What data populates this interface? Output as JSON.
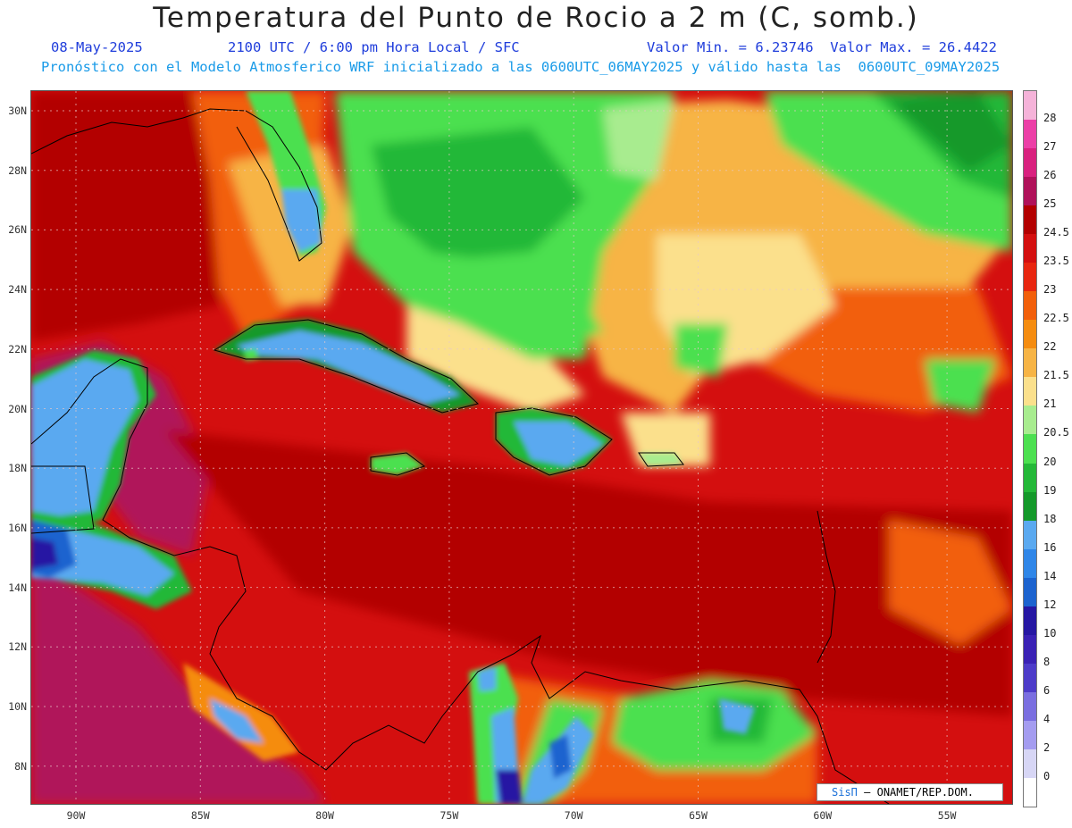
{
  "title": "Temperatura del Punto de Rocio a 2 m (C, somb.)",
  "subtitle": {
    "date": "08-May-2025",
    "time": "2100 UTC / 6:00 pm Hora Local / SFC",
    "minmax": "Valor Min. = 6.23746  Valor Max. = 26.4422",
    "model_line": "Pronóstico con el Modelo Atmosferico WRF inicializado a las 0600UTC_06MAY2025 y válido hasta las  0600UTC_09MAY2025"
  },
  "lat_labels": [
    "30N",
    "28N",
    "26N",
    "24N",
    "22N",
    "20N",
    "18N",
    "16N",
    "14N",
    "12N",
    "10N",
    "8N"
  ],
  "lon_labels": [
    "90W",
    "85W",
    "80W",
    "75W",
    "70W",
    "65W",
    "60W",
    "55W"
  ],
  "colorbar": {
    "labels": [
      "28",
      "27",
      "26",
      "25",
      "24.5",
      "23.5",
      "23",
      "22.5",
      "22",
      "21.5",
      "21",
      "20.5",
      "20",
      "19",
      "18",
      "16",
      "14",
      "12",
      "10",
      "8",
      "6",
      "4",
      "2",
      "0"
    ],
    "colors": [
      "#f5b3d9",
      "#ec3fa7",
      "#d9217f",
      "#b0125a",
      "#b30000",
      "#d40f0f",
      "#e8260f",
      "#f25f0a",
      "#f58c0f",
      "#f7b445",
      "#fbe08c",
      "#a8ec8f",
      "#4ce050",
      "#24b838",
      "#14992a",
      "#5aa9f0",
      "#2f86e8",
      "#1c63cf",
      "#2617a3",
      "#3a21b5",
      "#4d3bc9",
      "#7a6ee0",
      "#a49cf0",
      "#d7d6f5",
      "#ffffff"
    ]
  },
  "credit": {
    "logo": "SisΠ",
    "text": "– ONAMET/REP.DOM."
  }
}
